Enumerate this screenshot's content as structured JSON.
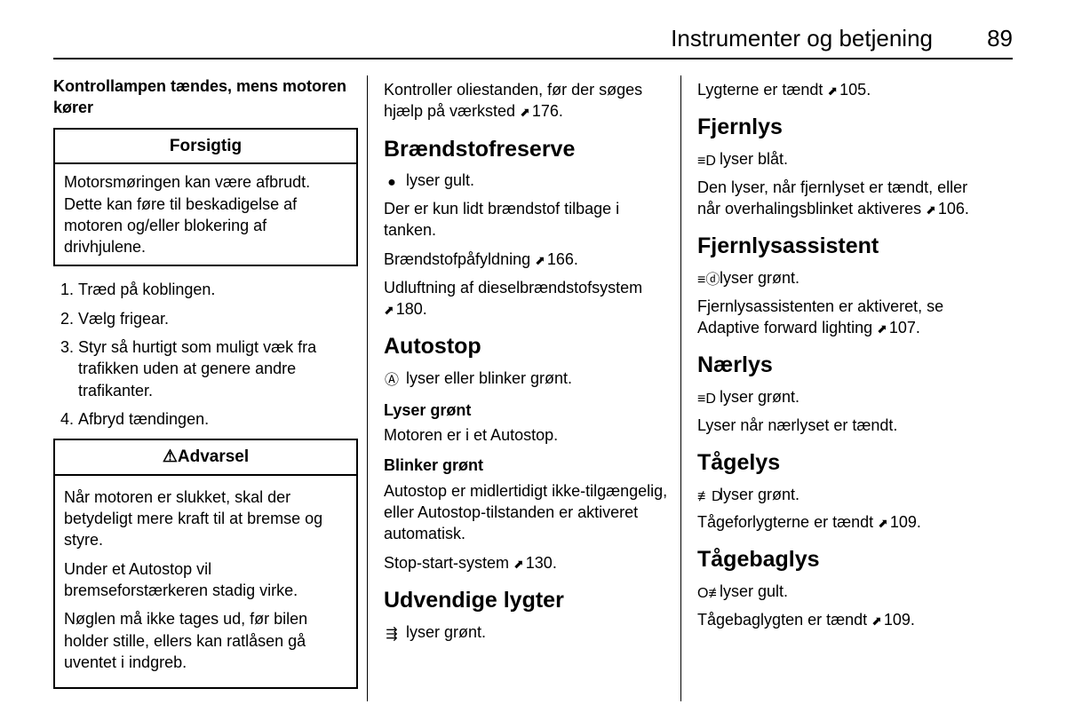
{
  "header": {
    "title": "Instrumenter og betjening",
    "page": "89"
  },
  "col1": {
    "lead_heading": "Kontrollampen tændes, mens motoren kører",
    "caution": {
      "title": "Forsigtig",
      "body": "Motorsmøringen kan være afbrudt. Dette kan føre til beskadigelse af motoren og/eller blokering af drivhjulene."
    },
    "steps": [
      "Træd på koblingen.",
      "Vælg frigear.",
      "Styr så hurtigt som muligt væk fra trafikken uden at genere andre trafikanter.",
      "Afbryd tændingen."
    ],
    "warning": {
      "title": "Advarsel",
      "p1": "Når motoren er slukket, skal der betydeligt mere kraft til at bremse og styre.",
      "p2": "Under et Autostop vil bremseforstærkeren stadig virke.",
      "p3": "Nøglen må ikke tages ud, før bilen holder stille, ellers kan ratlåsen gå uventet i indgreb."
    }
  },
  "col2": {
    "oil_text_a": "Kontroller oliestanden, før der søges hjælp på værksted ",
    "oil_ref": "176",
    "fuel": {
      "title": "Brændstofreserve",
      "indicator_icon": "●",
      "indicator_text": " lyser gult.",
      "p1": "Der er kun lidt brændstof tilbage i tanken.",
      "refuel_a": "Brændstofpåfyldning ",
      "refuel_ref": "166",
      "bleed_a": "Udluftning af dieselbrændstofsystem ",
      "bleed_ref": "180"
    },
    "autostop": {
      "title": "Autostop",
      "indicator_icon": "Ⓐ",
      "indicator_text": " lyser eller blinker grønt.",
      "green_h": "Lyser grønt",
      "green_p": "Motoren er i et Autostop.",
      "blink_h": "Blinker grønt",
      "blink_p": "Autostop er midlertidigt ikke-tilgængelig, eller Autostop-tilstanden er aktiveret automatisk.",
      "sys_a": "Stop-start-system ",
      "sys_ref": "130"
    },
    "ext": {
      "title": "Udvendige lygter",
      "indicator_icon": "⇶",
      "indicator_text": " lyser grønt."
    }
  },
  "col3": {
    "ext2_a": "Lygterne er tændt ",
    "ext2_ref": "105",
    "high": {
      "title": "Fjernlys",
      "icon": "≡D",
      "ind": " lyser blåt.",
      "p_a": "Den lyser, når fjernlyset er tændt, eller når overhalingsblinket aktiveres ",
      "p_ref": "106"
    },
    "assist": {
      "title": "Fjernlysassistent",
      "icon": "≡ⓓ",
      "ind": " lyser grønt.",
      "p_a": "Fjernlysassistenten er aktiveret, se Adaptive forward lighting ",
      "p_ref": "107"
    },
    "low": {
      "title": "Nærlys",
      "icon": "≡D",
      "ind": " lyser grønt.",
      "p": "Lyser når nærlyset er tændt."
    },
    "fog": {
      "title": "Tågelys",
      "icon": "≢D",
      "ind": " lyser grønt.",
      "p_a": "Tågeforlygterne er tændt ",
      "p_ref": "109"
    },
    "rfog": {
      "title": "Tågebaglys",
      "icon": "O≢",
      "ind": " lyser gult.",
      "p_a": "Tågebaglygten er tændt ",
      "p_ref": "109"
    }
  }
}
